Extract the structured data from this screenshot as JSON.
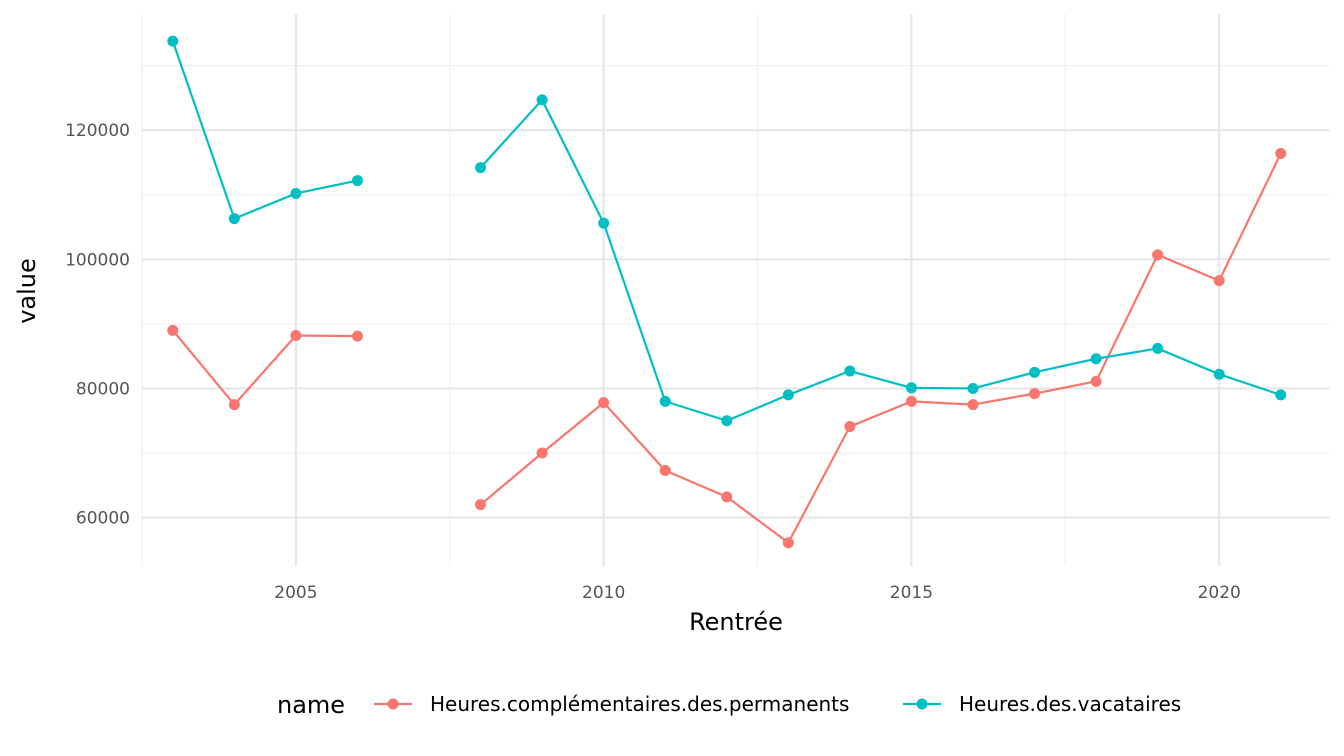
{
  "chart_data": {
    "type": "line",
    "xlabel": "Rentrée",
    "ylabel": "value",
    "xlim": [
      2002.5,
      2021.8
    ],
    "ylim": [
      52500,
      138000
    ],
    "x_ticks": [
      2005,
      2010,
      2015,
      2020
    ],
    "x_minor": [
      2002.5,
      2007.5,
      2012.5,
      2017.5
    ],
    "y_ticks": [
      60000,
      80000,
      100000,
      120000
    ],
    "y_minor": [
      70000,
      90000,
      110000,
      130000
    ],
    "y_tick_labels": [
      "60000",
      "80000",
      "100000",
      "120000"
    ],
    "x_tick_labels": [
      "2005",
      "2010",
      "2015",
      "2020"
    ],
    "grid": true,
    "legend": {
      "title": "name",
      "position": "bottom"
    },
    "series": [
      {
        "name": "Heures.complémentaires.des.permanents",
        "color": "#F8766D",
        "segments": [
          {
            "x": [
              2003,
              2004,
              2005,
              2006
            ],
            "y": [
              89000,
              77500,
              88200,
              88100
            ]
          },
          {
            "x": [
              2008,
              2009,
              2010,
              2011,
              2012,
              2013,
              2014,
              2015,
              2016,
              2017,
              2018,
              2019,
              2020,
              2021
            ],
            "y": [
              62000,
              70000,
              77800,
              67300,
              63200,
              56100,
              74100,
              78000,
              77500,
              79200,
              81100,
              100700,
              96700,
              116400
            ]
          }
        ]
      },
      {
        "name": "Heures.des.vacataires",
        "color": "#00BFC4",
        "segments": [
          {
            "x": [
              2003,
              2004,
              2005,
              2006
            ],
            "y": [
              133800,
              106300,
              110200,
              112200
            ]
          },
          {
            "x": [
              2008,
              2009,
              2010,
              2011,
              2012,
              2013,
              2014,
              2015,
              2016,
              2017,
              2018,
              2019,
              2020,
              2021
            ],
            "y": [
              114200,
              124700,
              105600,
              78000,
              75000,
              79000,
              82700,
              80100,
              80000,
              82500,
              84600,
              86200,
              82200,
              79000
            ]
          }
        ]
      }
    ]
  }
}
